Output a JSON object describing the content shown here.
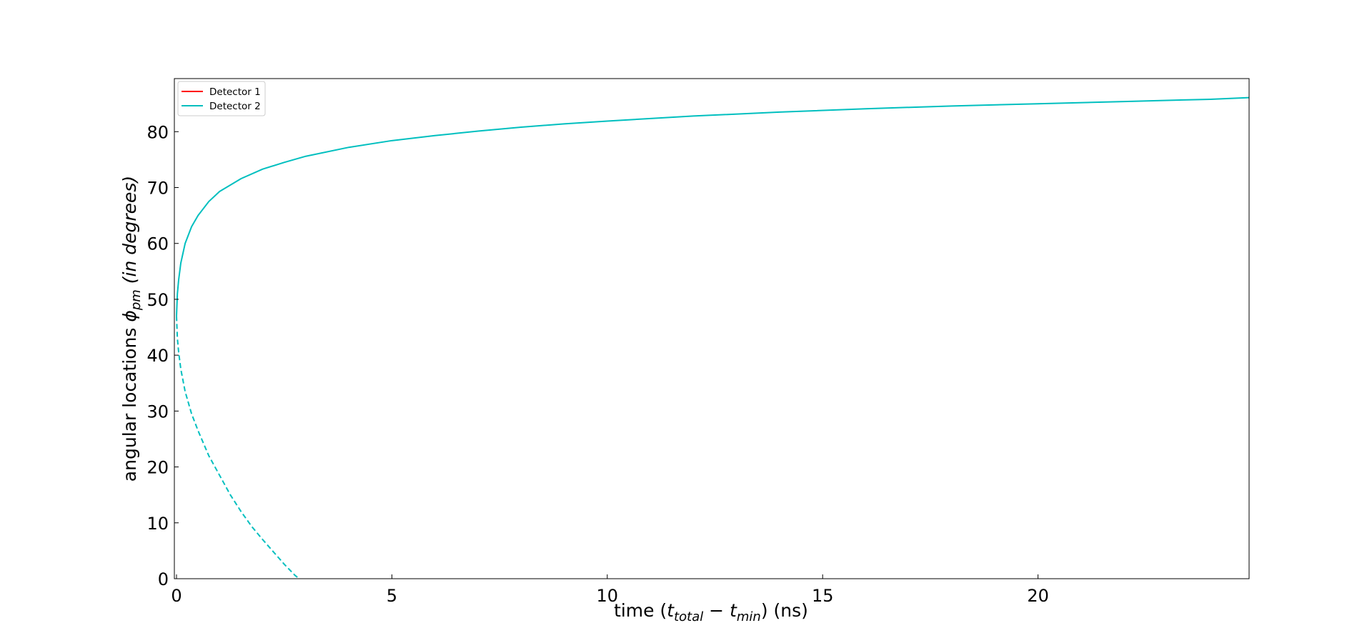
{
  "chart_data": {
    "type": "line",
    "xlabel_parts": {
      "prefix": "time (",
      "t1": "t",
      "t1_sub": "total",
      "minus": " − ",
      "t2": "t",
      "t2_sub": "min",
      "suffix": ") (ns)"
    },
    "ylabel_parts": {
      "prefix": "angular locations ",
      "phi": "ϕ",
      "phi_sub": "pm",
      "suffix": " (in degrees)"
    },
    "xlim": [
      -0.05,
      24.9
    ],
    "ylim": [
      0,
      89.5
    ],
    "xticks": [
      0,
      5,
      10,
      15,
      20
    ],
    "yticks": [
      0,
      10,
      20,
      30,
      40,
      50,
      60,
      70,
      80
    ],
    "grid": false,
    "legend_placement": "top-left",
    "series": [
      {
        "name": "Detector 1",
        "color": "#ff0000",
        "style": "solid",
        "x": [],
        "y": []
      },
      {
        "name": "Detector 2",
        "color": "#00bfbf",
        "style": "solid",
        "x": [
          0.0,
          0.02,
          0.05,
          0.1,
          0.2,
          0.35,
          0.5,
          0.75,
          1.0,
          1.5,
          2.0,
          2.5,
          3.0,
          4.0,
          5.0,
          6.0,
          7.0,
          8.0,
          9.0,
          10.0,
          12.0,
          14.0,
          16.0,
          18.0,
          20.0,
          22.0,
          24.0,
          24.9
        ],
        "y": [
          47.0,
          51.0,
          53.5,
          56.5,
          60.0,
          63.0,
          65.0,
          67.5,
          69.3,
          71.6,
          73.3,
          74.5,
          75.6,
          77.2,
          78.4,
          79.3,
          80.1,
          80.8,
          81.4,
          81.9,
          82.8,
          83.5,
          84.1,
          84.6,
          85.0,
          85.4,
          85.8,
          86.1
        ]
      },
      {
        "name": "",
        "color": "#00bfbf",
        "style": "dashed",
        "x": [
          0.0,
          0.02,
          0.05,
          0.1,
          0.2,
          0.35,
          0.5,
          0.75,
          1.0,
          1.25,
          1.5,
          1.75,
          2.0,
          2.25,
          2.5,
          2.75,
          2.85
        ],
        "y": [
          47.0,
          43.0,
          40.5,
          37.5,
          33.5,
          29.5,
          26.5,
          22.0,
          18.5,
          15.0,
          12.0,
          9.3,
          7.0,
          4.8,
          2.6,
          0.6,
          0.0
        ]
      }
    ]
  }
}
